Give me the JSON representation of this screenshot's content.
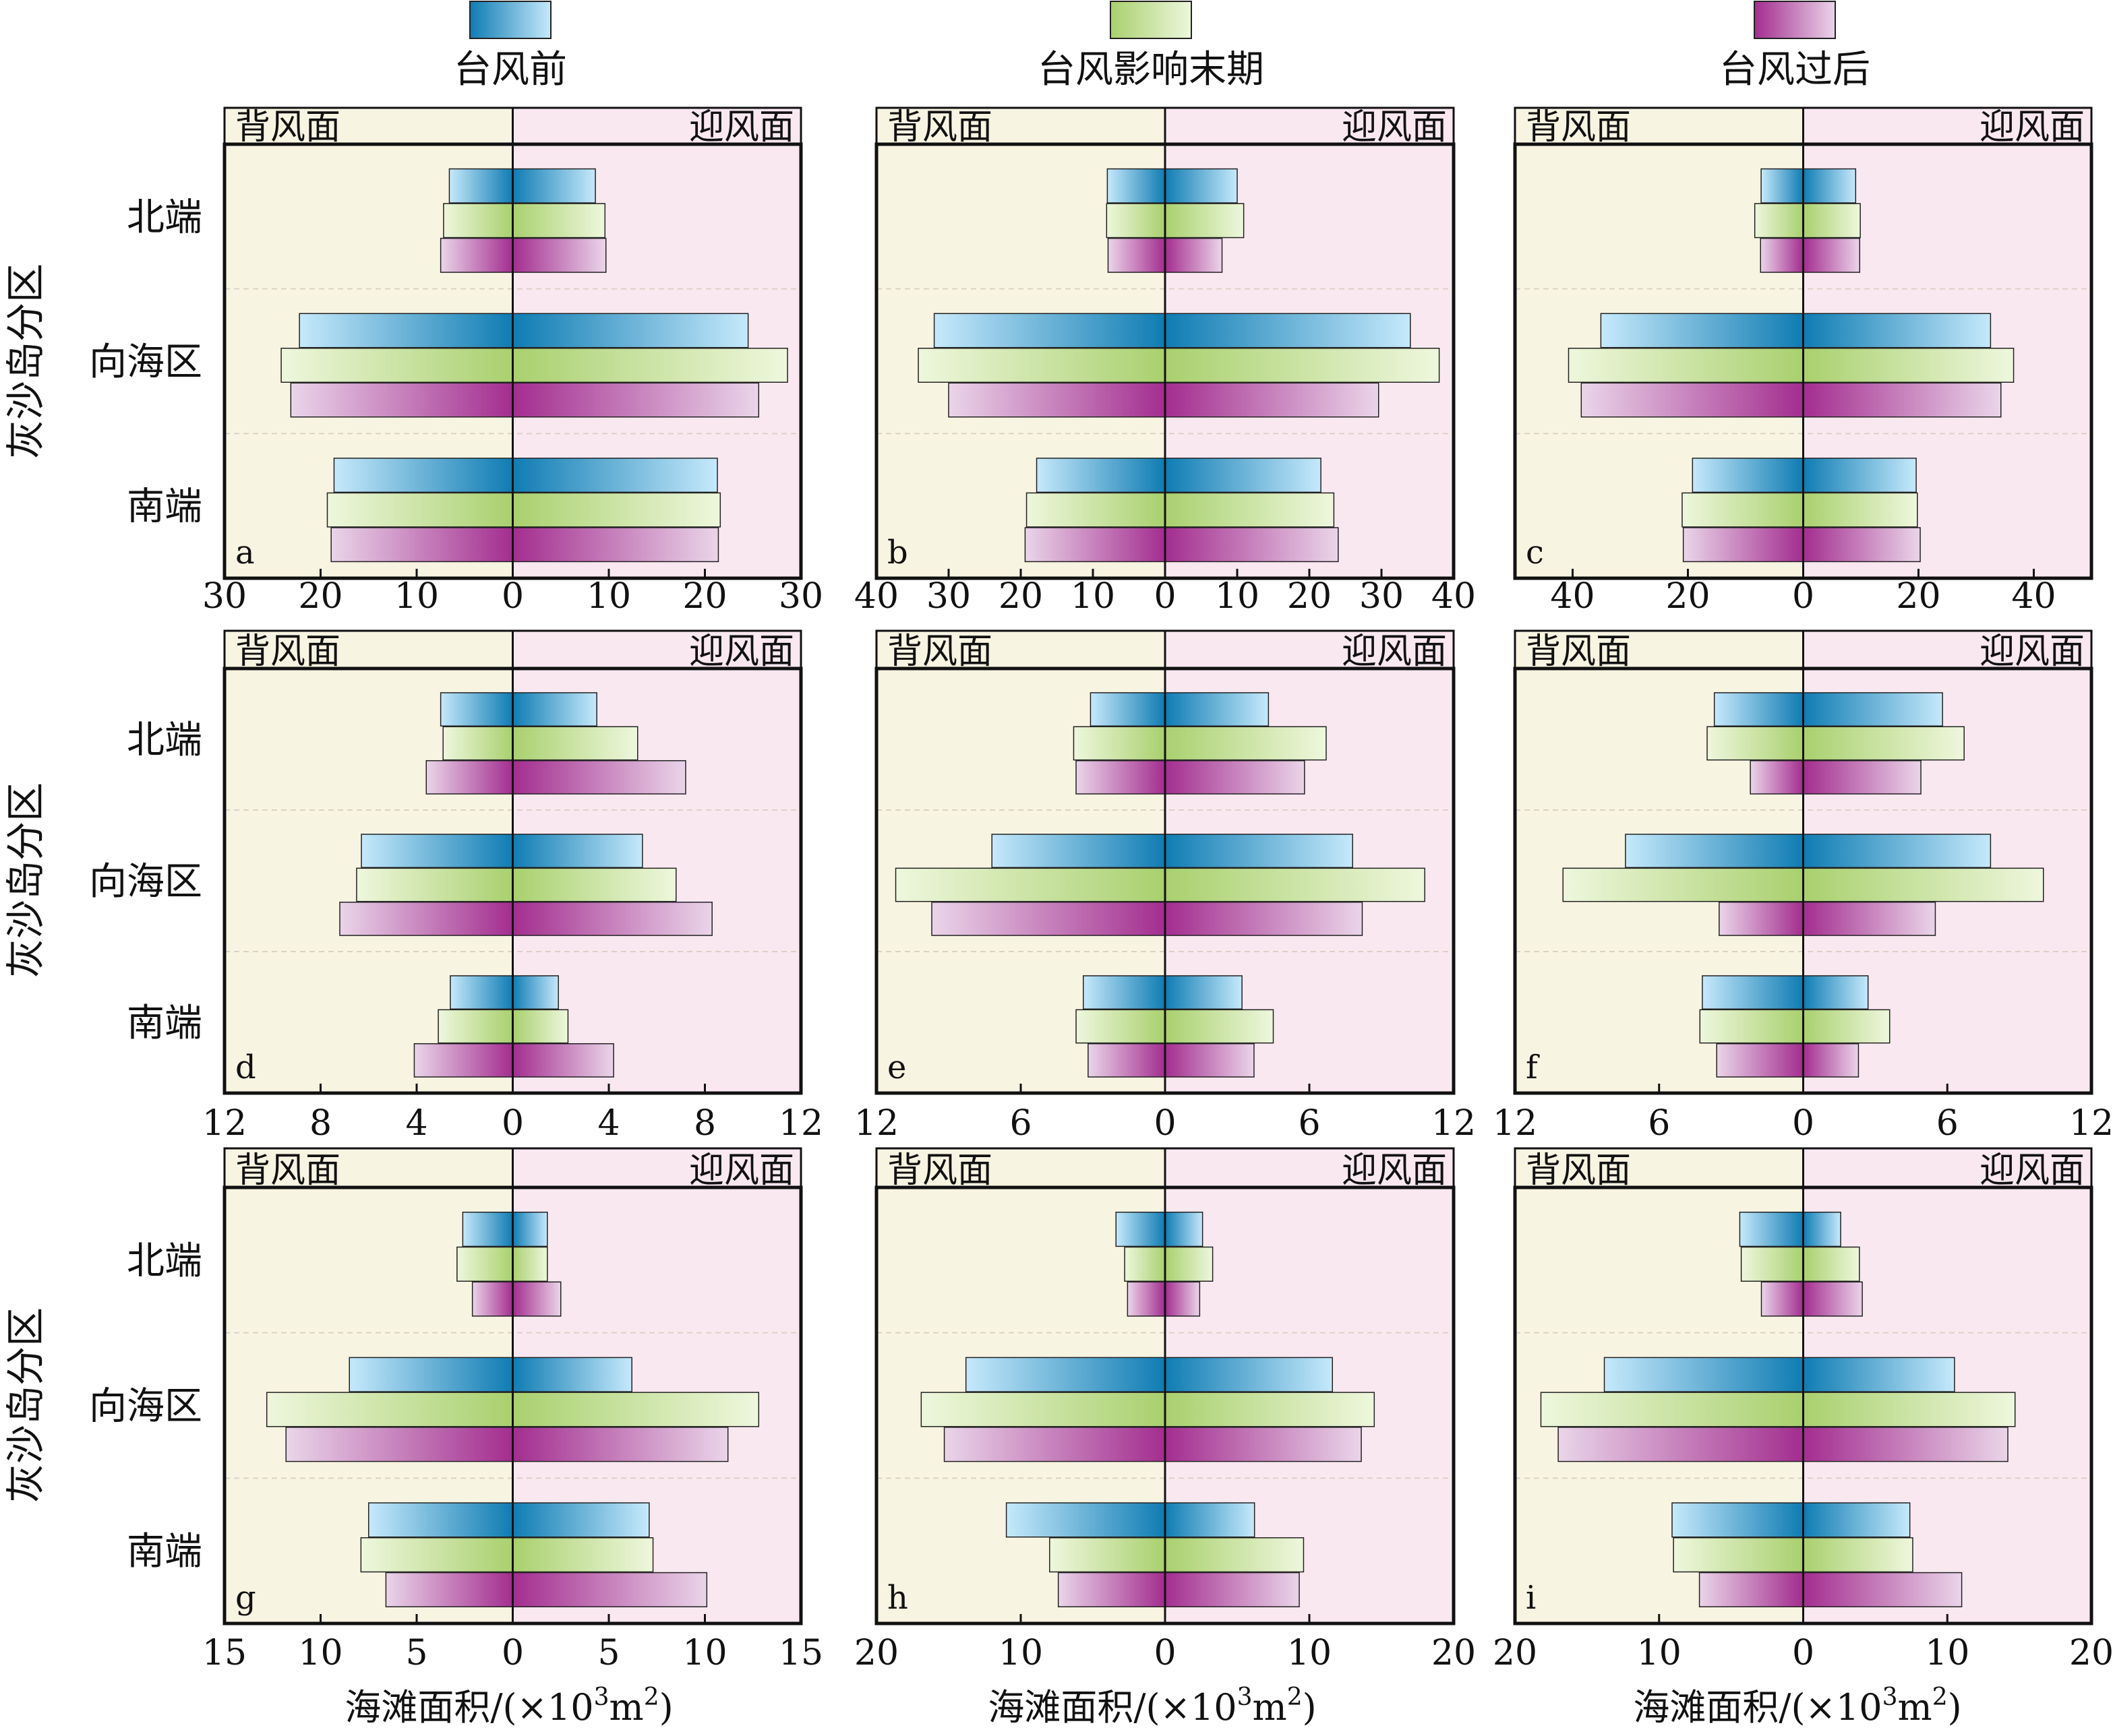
{
  "colors": {
    "leeward_bg": "#f8f4e2",
    "windward_bg": "#fae8f1",
    "before_dark": "#0f7cb3",
    "before_light": "#c6e9fb",
    "late_dark": "#a9d06e",
    "late_light": "#eef7dd",
    "after_dark": "#a32d8f",
    "after_light": "#ead5e9",
    "outline": "#222222"
  },
  "legend": [
    {
      "key": "before",
      "label": "台风前"
    },
    {
      "key": "late",
      "label": "台风影响末期"
    },
    {
      "key": "after",
      "label": "台风过后"
    }
  ],
  "side_labels": {
    "leeward": "背风面",
    "windward": "迎风面"
  },
  "row_axis_labels": [
    "灰沙岛分区",
    "灰沙岛分区",
    "灰沙岛分区"
  ],
  "x_axis_label": {
    "main": "海滩面积/(×10",
    "sup1": "3",
    "mid": "m",
    "sup2": "2",
    "end": ")"
  },
  "chart_data": [
    {
      "panel": "a",
      "type": "bar",
      "orientation": "diverging-horizontal",
      "categories": [
        "北端",
        "向海区",
        "南端"
      ],
      "xlim": [
        -30,
        30
      ],
      "ticks": [
        30,
        20,
        10,
        0,
        10,
        20,
        30
      ],
      "series": [
        {
          "key": "before",
          "leeward": [
            6.6,
            22.2,
            18.6
          ],
          "windward": [
            8.6,
            24.5,
            21.3
          ]
        },
        {
          "key": "late",
          "leeward": [
            7.2,
            24.1,
            19.3
          ],
          "windward": [
            9.6,
            28.6,
            21.6
          ]
        },
        {
          "key": "after",
          "leeward": [
            7.5,
            23.1,
            18.9
          ],
          "windward": [
            9.7,
            25.6,
            21.4
          ]
        }
      ]
    },
    {
      "panel": "b",
      "type": "bar",
      "orientation": "diverging-horizontal",
      "categories": [
        "北端",
        "向海区",
        "南端"
      ],
      "xlim": [
        -40,
        40
      ],
      "ticks": [
        40,
        30,
        20,
        10,
        0,
        10,
        20,
        30,
        40
      ],
      "series": [
        {
          "key": "before",
          "leeward": [
            8.0,
            32.0,
            17.8
          ],
          "windward": [
            10.0,
            34.0,
            21.6
          ]
        },
        {
          "key": "late",
          "leeward": [
            8.1,
            34.2,
            19.2
          ],
          "windward": [
            10.9,
            38.0,
            23.4
          ]
        },
        {
          "key": "after",
          "leeward": [
            7.9,
            30.0,
            19.4
          ],
          "windward": [
            7.9,
            29.6,
            24.0
          ]
        }
      ]
    },
    {
      "panel": "c",
      "type": "bar",
      "orientation": "diverging-horizontal",
      "categories": [
        "北端",
        "向海区",
        "南端"
      ],
      "xlim": [
        -50,
        50
      ],
      "ticks": [
        40,
        20,
        0,
        20,
        40
      ],
      "series": [
        {
          "key": "before",
          "leeward": [
            7.3,
            35.1,
            19.2
          ],
          "windward": [
            9.1,
            32.5,
            19.6
          ]
        },
        {
          "key": "late",
          "leeward": [
            8.4,
            40.7,
            21.0
          ],
          "windward": [
            9.9,
            36.5,
            19.8
          ]
        },
        {
          "key": "after",
          "leeward": [
            7.4,
            38.5,
            20.8
          ],
          "windward": [
            9.8,
            34.3,
            20.3
          ]
        }
      ]
    },
    {
      "panel": "d",
      "type": "bar",
      "orientation": "diverging-horizontal",
      "categories": [
        "北端",
        "向海区",
        "南端"
      ],
      "xlim": [
        -12,
        12
      ],
      "ticks": [
        12,
        8,
        4,
        0,
        4,
        8,
        12
      ],
      "series": [
        {
          "key": "before",
          "leeward": [
            3.0,
            6.3,
            2.6
          ],
          "windward": [
            3.5,
            5.4,
            1.9
          ]
        },
        {
          "key": "late",
          "leeward": [
            2.9,
            6.5,
            3.1
          ],
          "windward": [
            5.2,
            6.8,
            2.3
          ]
        },
        {
          "key": "after",
          "leeward": [
            3.6,
            7.2,
            4.1
          ],
          "windward": [
            7.2,
            8.3,
            4.2
          ]
        }
      ]
    },
    {
      "panel": "e",
      "type": "bar",
      "orientation": "diverging-horizontal",
      "categories": [
        "北端",
        "向海区",
        "南端"
      ],
      "xlim": [
        -12,
        12
      ],
      "ticks": [
        12,
        6,
        0,
        6,
        12
      ],
      "series": [
        {
          "key": "before",
          "leeward": [
            3.1,
            7.2,
            3.4
          ],
          "windward": [
            4.3,
            7.8,
            3.2
          ]
        },
        {
          "key": "late",
          "leeward": [
            3.8,
            11.2,
            3.7
          ],
          "windward": [
            6.7,
            10.8,
            4.5
          ]
        },
        {
          "key": "after",
          "leeward": [
            3.7,
            9.7,
            3.2
          ],
          "windward": [
            5.8,
            8.2,
            3.7
          ]
        }
      ]
    },
    {
      "panel": "f",
      "type": "bar",
      "orientation": "diverging-horizontal",
      "categories": [
        "北端",
        "向海区",
        "南端"
      ],
      "xlim": [
        -12,
        12
      ],
      "ticks": [
        12,
        6,
        0,
        6,
        12
      ],
      "series": [
        {
          "key": "before",
          "leeward": [
            3.7,
            7.4,
            4.2
          ],
          "windward": [
            5.8,
            7.8,
            2.7
          ]
        },
        {
          "key": "late",
          "leeward": [
            4.0,
            10.0,
            4.3
          ],
          "windward": [
            6.7,
            10.0,
            3.6
          ]
        },
        {
          "key": "after",
          "leeward": [
            2.2,
            3.5,
            3.6
          ],
          "windward": [
            4.9,
            5.5,
            2.3
          ]
        }
      ]
    },
    {
      "panel": "g",
      "type": "bar",
      "orientation": "diverging-horizontal",
      "categories": [
        "北端",
        "向海区",
        "南端"
      ],
      "xlim": [
        -15,
        15
      ],
      "ticks": [
        15,
        10,
        5,
        0,
        5,
        10,
        15
      ],
      "series": [
        {
          "key": "before",
          "leeward": [
            2.6,
            8.5,
            7.5
          ],
          "windward": [
            1.8,
            6.2,
            7.1
          ]
        },
        {
          "key": "late",
          "leeward": [
            2.9,
            12.8,
            7.9
          ],
          "windward": [
            1.8,
            12.8,
            7.3
          ]
        },
        {
          "key": "after",
          "leeward": [
            2.1,
            11.8,
            6.6
          ],
          "windward": [
            2.5,
            11.2,
            10.1
          ]
        }
      ]
    },
    {
      "panel": "h",
      "type": "bar",
      "orientation": "diverging-horizontal",
      "categories": [
        "北端",
        "向海区",
        "南端"
      ],
      "xlim": [
        -20,
        20
      ],
      "ticks": [
        20,
        10,
        0,
        10,
        20
      ],
      "series": [
        {
          "key": "before",
          "leeward": [
            3.4,
            13.8,
            11.0
          ],
          "windward": [
            2.6,
            11.6,
            6.2
          ]
        },
        {
          "key": "late",
          "leeward": [
            2.8,
            16.9,
            8.0
          ],
          "windward": [
            3.3,
            14.5,
            9.6
          ]
        },
        {
          "key": "after",
          "leeward": [
            2.6,
            15.3,
            7.4
          ],
          "windward": [
            2.4,
            13.6,
            9.3
          ]
        }
      ]
    },
    {
      "panel": "i",
      "type": "bar",
      "orientation": "diverging-horizontal",
      "categories": [
        "北端",
        "向海区",
        "南端"
      ],
      "xlim": [
        -20,
        20
      ],
      "ticks": [
        20,
        10,
        0,
        10,
        20
      ],
      "series": [
        {
          "key": "before",
          "leeward": [
            4.4,
            13.8,
            9.1
          ],
          "windward": [
            2.6,
            10.5,
            7.4
          ]
        },
        {
          "key": "late",
          "leeward": [
            4.3,
            18.2,
            9.0
          ],
          "windward": [
            3.9,
            14.7,
            7.6
          ]
        },
        {
          "key": "after",
          "leeward": [
            2.9,
            17.0,
            7.2
          ],
          "windward": [
            4.1,
            14.2,
            11.0
          ]
        }
      ]
    }
  ]
}
